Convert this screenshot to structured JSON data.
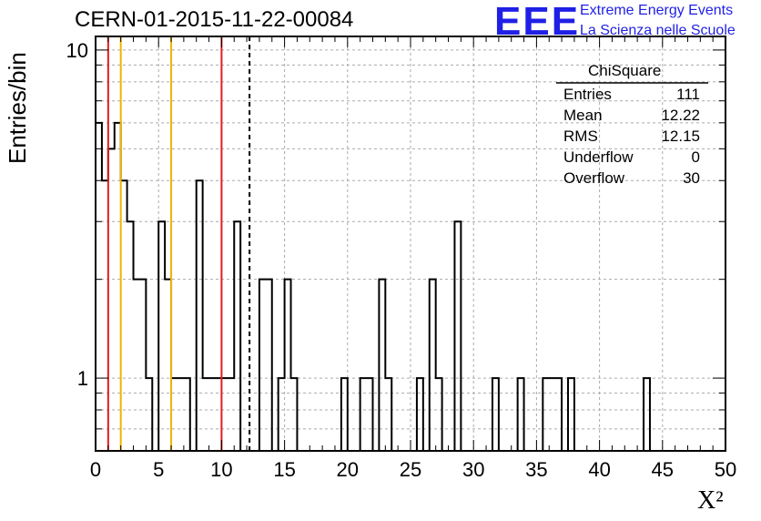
{
  "header": {
    "title": "CERN-01-2015-11-22-00084",
    "logo_text": "EEE",
    "logo_line1": "Extreme Energy Events",
    "logo_line2": "La Scienza nelle Scuole",
    "logo_color": "#1f1fe6"
  },
  "stats": {
    "name": "ChiSquare",
    "rows": [
      {
        "key": "Entries",
        "value": "111"
      },
      {
        "key": "Mean",
        "value": "12.22"
      },
      {
        "key": "RMS",
        "value": "12.15"
      },
      {
        "key": "Underflow",
        "value": "0"
      },
      {
        "key": "Overflow",
        "value": "30"
      }
    ]
  },
  "chart_data": {
    "type": "bar",
    "title": "CERN-01-2015-11-22-00084",
    "xlabel": "X²",
    "ylabel": "Entries/bin",
    "xlim": [
      0,
      50
    ],
    "ylim": [
      0.6,
      11
    ],
    "log_y": true,
    "grid": true,
    "bin_width": 0.5,
    "x_ticks": [
      "0",
      "5",
      "10",
      "15",
      "20",
      "25",
      "30",
      "35",
      "40",
      "45",
      "50"
    ],
    "y_ticks": [
      "1",
      "10"
    ],
    "bins": [
      {
        "x": 0.0,
        "y": 6
      },
      {
        "x": 0.5,
        "y": 4
      },
      {
        "x": 1.0,
        "y": 5
      },
      {
        "x": 1.5,
        "y": 6
      },
      {
        "x": 2.0,
        "y": 4
      },
      {
        "x": 2.5,
        "y": 3
      },
      {
        "x": 3.0,
        "y": 2
      },
      {
        "x": 3.5,
        "y": 2
      },
      {
        "x": 4.0,
        "y": 1
      },
      {
        "x": 5.0,
        "y": 3
      },
      {
        "x": 5.5,
        "y": 2
      },
      {
        "x": 6.0,
        "y": 1
      },
      {
        "x": 6.5,
        "y": 1
      },
      {
        "x": 7.0,
        "y": 1
      },
      {
        "x": 8.0,
        "y": 4
      },
      {
        "x": 8.5,
        "y": 1
      },
      {
        "x": 9.0,
        "y": 1
      },
      {
        "x": 9.5,
        "y": 1
      },
      {
        "x": 10.0,
        "y": 1
      },
      {
        "x": 10.5,
        "y": 1
      },
      {
        "x": 11.0,
        "y": 3
      },
      {
        "x": 13.0,
        "y": 2
      },
      {
        "x": 13.5,
        "y": 2
      },
      {
        "x": 14.5,
        "y": 1
      },
      {
        "x": 15.0,
        "y": 2
      },
      {
        "x": 15.5,
        "y": 1
      },
      {
        "x": 19.5,
        "y": 1
      },
      {
        "x": 21.0,
        "y": 1
      },
      {
        "x": 21.5,
        "y": 1
      },
      {
        "x": 22.5,
        "y": 2
      },
      {
        "x": 23.0,
        "y": 1
      },
      {
        "x": 25.5,
        "y": 1
      },
      {
        "x": 26.5,
        "y": 2
      },
      {
        "x": 27.0,
        "y": 1
      },
      {
        "x": 28.5,
        "y": 3
      },
      {
        "x": 31.5,
        "y": 1
      },
      {
        "x": 33.5,
        "y": 1
      },
      {
        "x": 35.5,
        "y": 1
      },
      {
        "x": 36.0,
        "y": 1
      },
      {
        "x": 36.5,
        "y": 1
      },
      {
        "x": 37.5,
        "y": 1
      },
      {
        "x": 43.5,
        "y": 1
      }
    ],
    "vertical_lines": [
      {
        "x": 1,
        "color": "#e01e1e",
        "style": "solid"
      },
      {
        "x": 2,
        "color": "#f0b400",
        "style": "solid"
      },
      {
        "x": 6,
        "color": "#f0b400",
        "style": "solid"
      },
      {
        "x": 10,
        "color": "#e01e1e",
        "style": "solid"
      },
      {
        "x": 12.22,
        "color": "#000000",
        "style": "dashed"
      }
    ]
  }
}
